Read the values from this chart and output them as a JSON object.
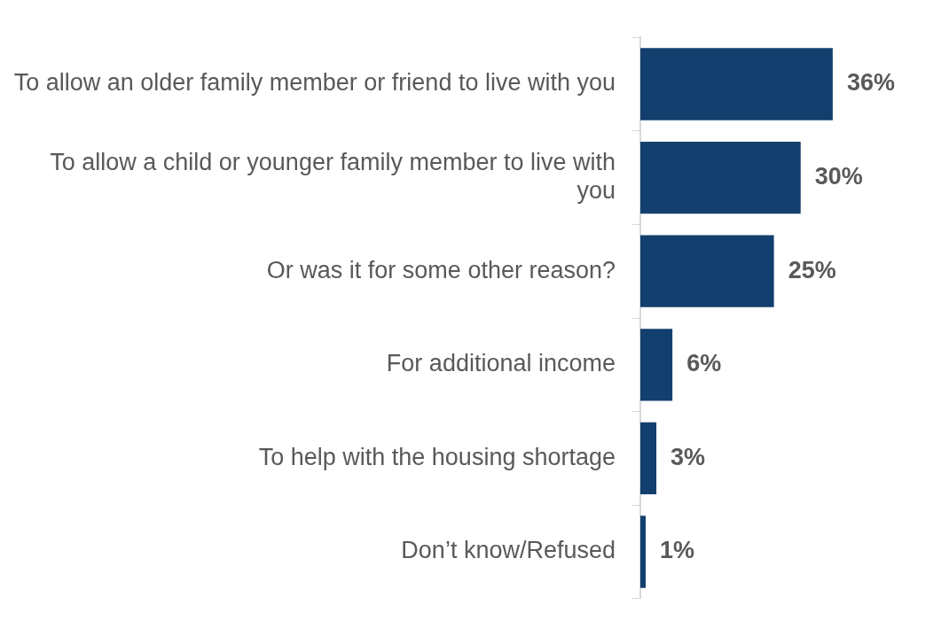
{
  "chart_data": {
    "type": "bar",
    "orientation": "horizontal",
    "categories": [
      "To allow an older family member or friend to live with you",
      "To allow a child or younger family member to live with you",
      "Or was it for some other reason?",
      "For additional income",
      "To help with the housing shortage",
      "Don’t know/Refused"
    ],
    "values": [
      36,
      30,
      25,
      6,
      3,
      1
    ],
    "value_labels": [
      "36%",
      "30%",
      "25%",
      "6%",
      "3%",
      "1%"
    ],
    "color": "#133f6e",
    "grid": false,
    "legend": false
  }
}
